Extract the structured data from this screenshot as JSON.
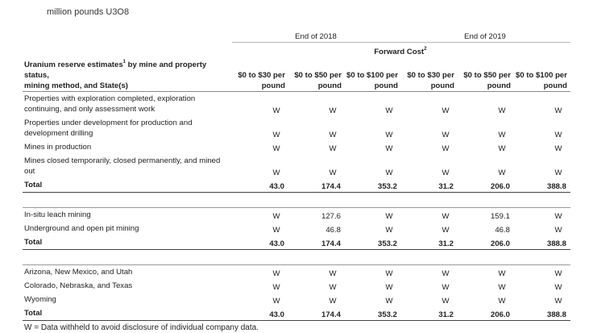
{
  "unit_label": "million pounds U3O8",
  "header": {
    "group_2018": "End of 2018",
    "group_2019": "End of 2019",
    "forward_cost": "Forward Cost",
    "forward_cost_sup": "2",
    "row_label_line1": "Uranium reserve estimates",
    "row_label_sup": "1",
    "row_label_rest": " by mine and property status,",
    "row_label_line2": "mining method, and State(s)",
    "cols": [
      {
        "line1": "$0 to $30 per",
        "line2": "pound"
      },
      {
        "line1": "$0 to $50 per",
        "line2": "pound"
      },
      {
        "line1": "$0 to $100 per",
        "line2": "pound"
      },
      {
        "line1": "$0 to $30 per",
        "line2": "pound"
      },
      {
        "line1": "$0 to $50 per",
        "line2": "pound"
      },
      {
        "line1": "$0 to $100 per",
        "line2": "pound"
      }
    ]
  },
  "section1": {
    "rows": [
      {
        "label1": "Properties with exploration completed, exploration",
        "label2": "continuing, and only assessment work",
        "values": [
          "W",
          "W",
          "W",
          "W",
          "W",
          "W"
        ]
      },
      {
        "label1": "Properties under development for production and",
        "label2": "development drilling",
        "values": [
          "W",
          "W",
          "W",
          "W",
          "W",
          "W"
        ]
      },
      {
        "label1": "Mines in production",
        "label2": "",
        "values": [
          "W",
          "W",
          "W",
          "W",
          "W",
          "W"
        ]
      },
      {
        "label1": "Mines closed temporarily, closed permanently, and mined",
        "label2": "out",
        "values": [
          "W",
          "W",
          "W",
          "W",
          "W",
          "W"
        ]
      }
    ],
    "total": {
      "label": "Total",
      "values": [
        "43.0",
        "174.4",
        "353.2",
        "31.2",
        "206.0",
        "388.8"
      ]
    }
  },
  "section2": {
    "rows": [
      {
        "label": "In-situ leach mining",
        "values": [
          "W",
          "127.6",
          "W",
          "W",
          "159.1",
          "W"
        ]
      },
      {
        "label": "Underground and open pit mining",
        "values": [
          "W",
          "46.8",
          "W",
          "W",
          "46.8",
          "W"
        ]
      }
    ],
    "total": {
      "label": "Total",
      "values": [
        "43.0",
        "174.4",
        "353.2",
        "31.2",
        "206.0",
        "388.8"
      ]
    }
  },
  "section3": {
    "rows": [
      {
        "label": "Arizona, New Mexico, and Utah",
        "values": [
          "W",
          "W",
          "W",
          "W",
          "W",
          "W"
        ]
      },
      {
        "label": "Colorado, Nebraska, and Texas",
        "values": [
          "W",
          "W",
          "W",
          "W",
          "W",
          "W"
        ]
      },
      {
        "label": "Wyoming",
        "values": [
          "W",
          "W",
          "W",
          "W",
          "W",
          "W"
        ]
      }
    ],
    "total": {
      "label": "Total",
      "values": [
        "43.0",
        "174.4",
        "353.2",
        "31.2",
        "206.0",
        "388.8"
      ]
    }
  },
  "footnote": "W = Data withheld to avoid disclosure of individual company data."
}
